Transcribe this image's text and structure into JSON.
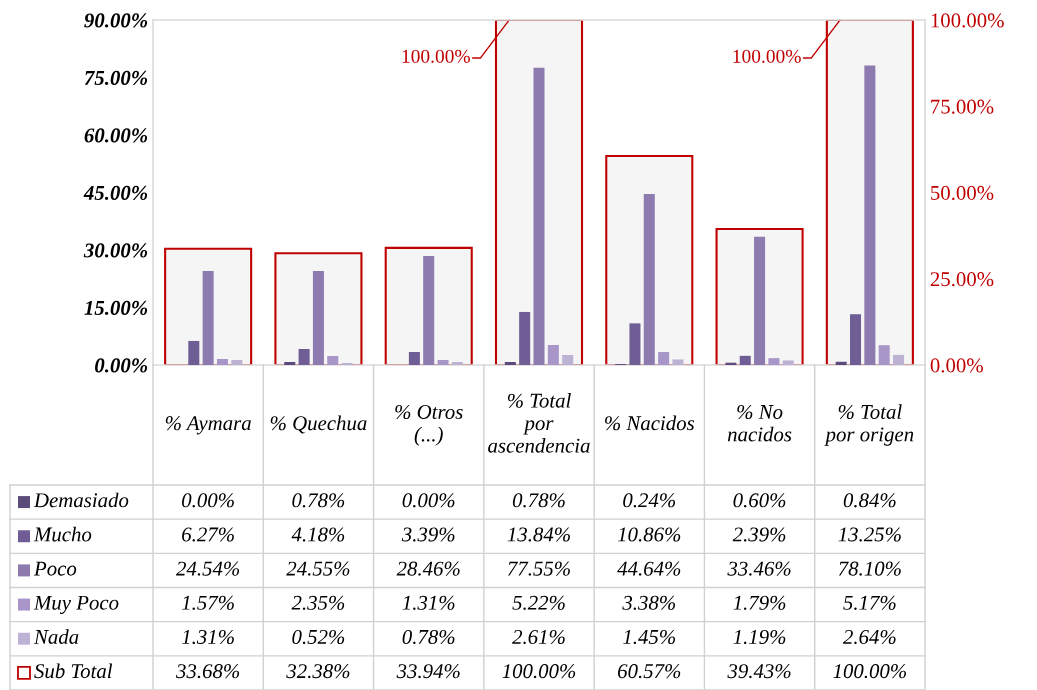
{
  "chart_data": {
    "type": "bar",
    "categories": [
      "% Aymara",
      "% Quechua",
      "% Otros (...)",
      "% Total por ascendencia",
      "% Nacidos",
      "% No nacidos",
      "% Total por origen"
    ],
    "series": [
      {
        "name": "Demasiado",
        "color": "#5b4a7a",
        "values": [
          0.0,
          0.78,
          0.0,
          0.78,
          0.24,
          0.6,
          0.84
        ],
        "value_labels": [
          "0.00%",
          "0.78%",
          "0.00%",
          "0.78%",
          "0.24%",
          "0.60%",
          "0.84%"
        ]
      },
      {
        "name": "Mucho",
        "color": "#6f5d96",
        "values": [
          6.27,
          4.18,
          3.39,
          13.84,
          10.86,
          2.39,
          13.25
        ],
        "value_labels": [
          "6.27%",
          "4.18%",
          "3.39%",
          "13.84%",
          "10.86%",
          "2.39%",
          "13.25%"
        ]
      },
      {
        "name": "Poco",
        "color": "#8d7bb0",
        "values": [
          24.54,
          24.55,
          28.46,
          77.55,
          44.64,
          33.46,
          78.1
        ],
        "value_labels": [
          "24.54%",
          "24.55%",
          "28.46%",
          "77.55%",
          "44.64%",
          "33.46%",
          "78.10%"
        ]
      },
      {
        "name": "Muy Poco",
        "color": "#a896c8",
        "values": [
          1.57,
          2.35,
          1.31,
          5.22,
          3.38,
          1.79,
          5.17
        ],
        "value_labels": [
          "1.57%",
          "2.35%",
          "1.31%",
          "5.22%",
          "3.38%",
          "1.79%",
          "5.17%"
        ]
      },
      {
        "name": "Nada",
        "color": "#bcb2d4",
        "values": [
          1.31,
          0.52,
          0.78,
          2.61,
          1.45,
          1.19,
          2.64
        ],
        "value_labels": [
          "1.31%",
          "0.52%",
          "0.78%",
          "2.61%",
          "1.45%",
          "1.19%",
          "2.64%"
        ]
      },
      {
        "name": "Sub Total",
        "color": "#c00000",
        "axis": "y2",
        "values": [
          33.68,
          32.38,
          33.94,
          100.0,
          60.57,
          39.43,
          100.0
        ],
        "value_labels": [
          "33.68%",
          "32.38%",
          "33.94%",
          "100.00%",
          "60.57%",
          "39.43%",
          "100.00%"
        ]
      }
    ],
    "ylim": [
      0,
      90
    ],
    "yticks": [
      {
        "value": 0,
        "label": "0.00%"
      },
      {
        "value": 15,
        "label": "15.00%"
      },
      {
        "value": 30,
        "label": "30.00%"
      },
      {
        "value": 45,
        "label": "45.00%"
      },
      {
        "value": 60,
        "label": "60.00%"
      },
      {
        "value": 75,
        "label": "75.00%"
      },
      {
        "value": 90,
        "label": "90.00%"
      }
    ],
    "y2lim": [
      0,
      100
    ],
    "y2ticks": [
      {
        "value": 0,
        "label": "0.00%"
      },
      {
        "value": 25,
        "label": "25.00%"
      },
      {
        "value": 50,
        "label": "50.00%"
      },
      {
        "value": 75,
        "label": "75.00%"
      },
      {
        "value": 100,
        "label": "100.00%"
      }
    ],
    "annotations": [
      "100.00%",
      "100.00%"
    ],
    "legend": "bottom left",
    "grid": false
  }
}
